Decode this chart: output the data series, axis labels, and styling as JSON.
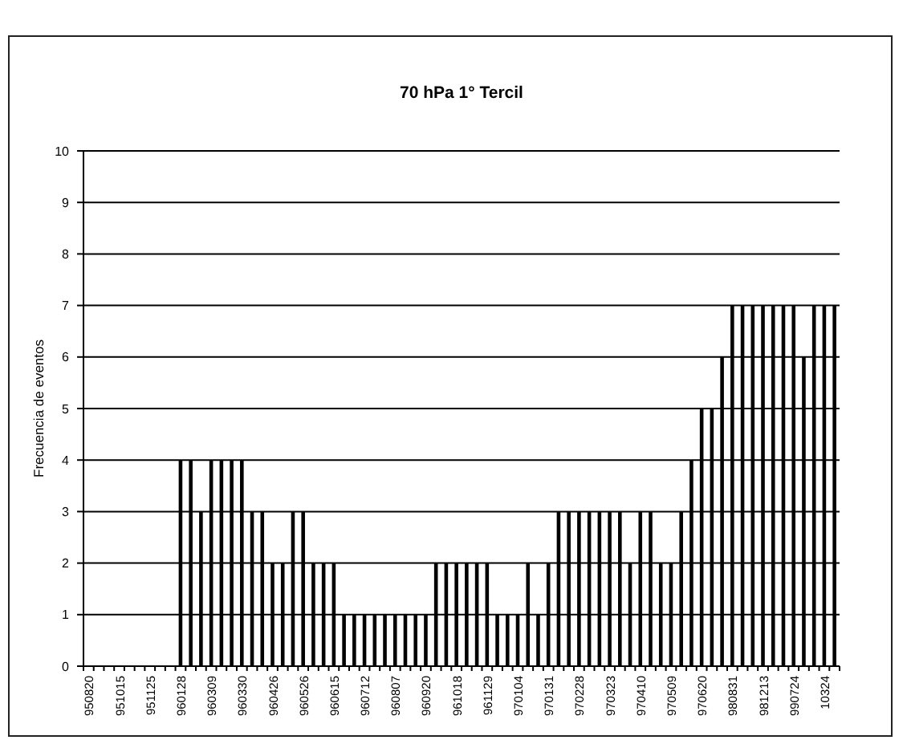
{
  "chart_data": {
    "type": "bar",
    "title": "70 hPa 1° Tercil",
    "ylabel": "Frecuencia de eventos",
    "categories": [
      "950820",
      null,
      null,
      "951015",
      null,
      null,
      "951125",
      null,
      null,
      "960128",
      null,
      null,
      "960309",
      null,
      null,
      "960330",
      null,
      null,
      "960426",
      null,
      null,
      "960526",
      null,
      null,
      "960615",
      null,
      null,
      "960712",
      null,
      null,
      "960807",
      null,
      null,
      "960920",
      null,
      null,
      "961018",
      null,
      null,
      "961129",
      null,
      null,
      "970104",
      null,
      null,
      "970131",
      null,
      null,
      "970228",
      null,
      null,
      "970323",
      null,
      null,
      "970410",
      null,
      null,
      "970509",
      null,
      null,
      "970620",
      null,
      null,
      "980831",
      null,
      null,
      "981213",
      null,
      null,
      "990724",
      null,
      null,
      "10324",
      null
    ],
    "values": [
      0,
      0,
      0,
      0,
      0,
      0,
      0,
      0,
      0,
      4,
      4,
      3,
      4,
      4,
      4,
      4,
      3,
      3,
      2,
      2,
      3,
      3,
      2,
      2,
      2,
      1,
      1,
      1,
      1,
      1,
      1,
      1,
      1,
      1,
      2,
      2,
      2,
      2,
      2,
      2,
      1,
      1,
      1,
      2,
      1,
      2,
      3,
      3,
      3,
      3,
      3,
      3,
      3,
      2,
      3,
      3,
      2,
      2,
      3,
      4,
      5,
      5,
      6,
      7,
      7,
      7,
      7,
      7,
      7,
      7,
      6,
      7,
      7,
      7
    ],
    "color": "#000000",
    "ylim": [
      0,
      10
    ],
    "yticks": [
      0,
      1,
      2,
      3,
      4,
      5,
      6,
      7,
      8,
      9,
      10
    ],
    "grid": "y"
  }
}
